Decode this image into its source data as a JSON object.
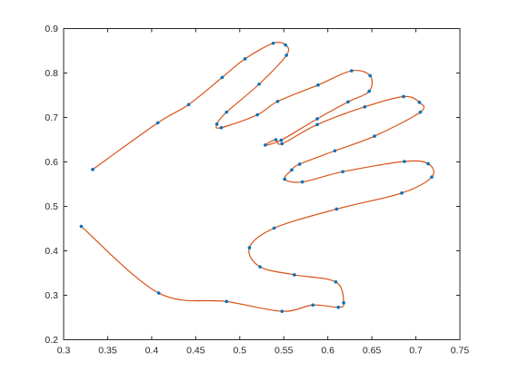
{
  "chart_data": {
    "type": "line",
    "title": "",
    "xlabel": "",
    "ylabel": "",
    "xlim": [
      0.3,
      0.75
    ],
    "ylim": [
      0.2,
      0.9
    ],
    "xticks": [
      0.3,
      0.35,
      0.4,
      0.45,
      0.5,
      0.55,
      0.6,
      0.65,
      0.7,
      0.75
    ],
    "yticks": [
      0.2,
      0.3,
      0.4,
      0.5,
      0.6,
      0.7,
      0.8,
      0.9
    ],
    "xtick_labels": [
      "0.3",
      "0.35",
      "0.4",
      "0.45",
      "0.5",
      "0.55",
      "0.6",
      "0.65",
      "0.7",
      "0.75"
    ],
    "ytick_labels": [
      "0.2",
      "0.3",
      "0.4",
      "0.5",
      "0.6",
      "0.7",
      "0.8",
      "0.9"
    ],
    "grid": false,
    "colors": {
      "curve": "#d95319",
      "points": "#0072bd",
      "axes": "#262626"
    },
    "series": [
      {
        "style": "points",
        "x": [
          0.333,
          0.407,
          0.442,
          0.48,
          0.506,
          0.538,
          0.552,
          0.553,
          0.522,
          0.485,
          0.474,
          0.479,
          0.52,
          0.543,
          0.589,
          0.627,
          0.648,
          0.647,
          0.623,
          0.588,
          0.547,
          0.529,
          0.541,
          0.548,
          0.588,
          0.642,
          0.686,
          0.704,
          0.705,
          0.653,
          0.608,
          0.568,
          0.559,
          0.551,
          0.571,
          0.617,
          0.687,
          0.714,
          0.718,
          0.684,
          0.61,
          0.539,
          0.511,
          0.523,
          0.562,
          0.609,
          0.618,
          0.612,
          0.583,
          0.548,
          0.485,
          0.408,
          0.32
        ],
        "y": [
          0.583,
          0.688,
          0.729,
          0.79,
          0.832,
          0.867,
          0.863,
          0.84,
          0.775,
          0.712,
          0.685,
          0.677,
          0.706,
          0.736,
          0.773,
          0.805,
          0.794,
          0.759,
          0.735,
          0.697,
          0.649,
          0.638,
          0.65,
          0.641,
          0.684,
          0.724,
          0.747,
          0.734,
          0.712,
          0.658,
          0.625,
          0.595,
          0.582,
          0.561,
          0.555,
          0.578,
          0.601,
          0.596,
          0.566,
          0.53,
          0.494,
          0.451,
          0.407,
          0.364,
          0.346,
          0.33,
          0.283,
          0.273,
          0.278,
          0.264,
          0.286,
          0.305,
          0.455
        ]
      }
    ]
  }
}
